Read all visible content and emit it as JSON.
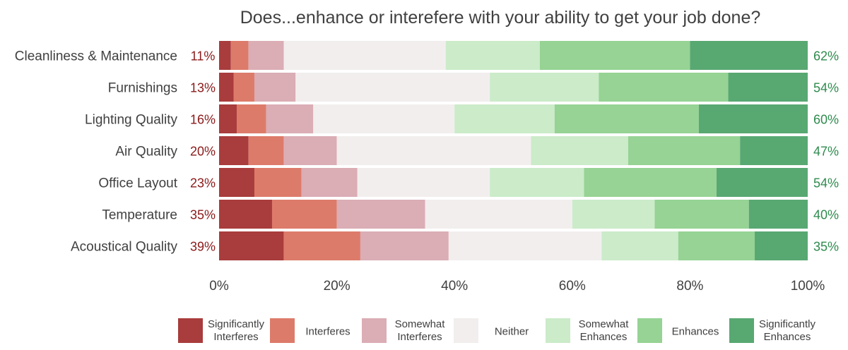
{
  "chart_data": {
    "type": "bar",
    "orientation": "horizontal-stacked-100",
    "title": "Does...enhance or interefere with your ability to get your job done?",
    "categories": [
      "Cleanliness & Maintenance",
      "Furnishings",
      "Lighting Quality",
      "Air Quality",
      "Office Layout",
      "Temperature",
      "Acoustical Quality"
    ],
    "series": [
      {
        "name": "Significantly Interferes",
        "label_lines": [
          "Significantly",
          "Interferes"
        ],
        "color": "#a93c3c",
        "values": [
          2,
          2.5,
          3,
          5,
          6,
          9,
          11
        ]
      },
      {
        "name": "Interferes",
        "label_lines": [
          "Interferes"
        ],
        "color": "#dd7b6a",
        "values": [
          3,
          3.5,
          5,
          6,
          8,
          11,
          13
        ]
      },
      {
        "name": "Somewhat Interferes",
        "label_lines": [
          "Somewhat",
          "Interferes"
        ],
        "color": "#dbadb5",
        "values": [
          6,
          7,
          8,
          9,
          9.5,
          15,
          15
        ]
      },
      {
        "name": "Neither",
        "label_lines": [
          "Neither"
        ],
        "color": "#f2eeee",
        "values": [
          27.5,
          33,
          24,
          33,
          22.5,
          25,
          26
        ]
      },
      {
        "name": "Somewhat Enhances",
        "label_lines": [
          "Somewhat",
          "Enhances"
        ],
        "color": "#cbebc9",
        "values": [
          16,
          18.5,
          17,
          16.5,
          16,
          14,
          13
        ]
      },
      {
        "name": "Enhances",
        "label_lines": [
          "Enhances"
        ],
        "color": "#96d394",
        "values": [
          25.5,
          22,
          24.5,
          19,
          22.5,
          16,
          13
        ]
      },
      {
        "name": "Significantly Enhances",
        "label_lines": [
          "Significantly",
          "Enhances"
        ],
        "color": "#58a872",
        "values": [
          20,
          13.5,
          18.5,
          11.5,
          15.5,
          10,
          9
        ]
      }
    ],
    "interfere_totals": [
      "11%",
      "13%",
      "16%",
      "20%",
      "23%",
      "35%",
      "39%"
    ],
    "enhance_totals": [
      "62%",
      "54%",
      "60%",
      "47%",
      "54%",
      "40%",
      "35%"
    ],
    "xlim": [
      0,
      100
    ],
    "x_ticks": [
      0,
      20,
      40,
      60,
      80,
      100
    ],
    "x_tick_labels": [
      "0%",
      "20%",
      "40%",
      "60%",
      "80%",
      "100%"
    ],
    "legend_position": "bottom",
    "colors": {
      "interfere_text": "#8b1a1a",
      "enhance_text": "#2e8b4e",
      "axis_text": "#404040"
    }
  }
}
